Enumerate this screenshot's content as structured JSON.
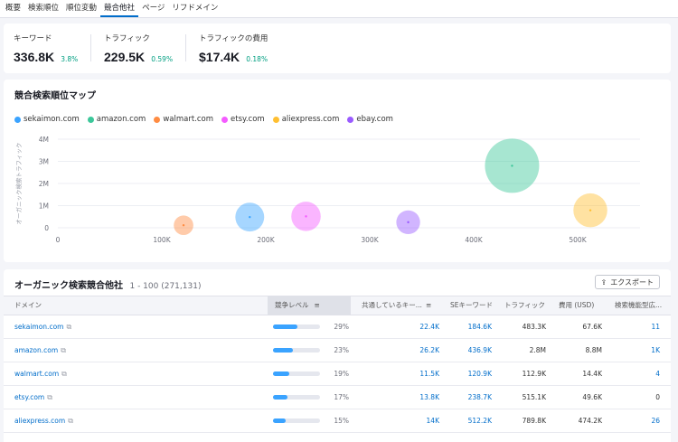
{
  "tabs": [
    "概要",
    "検索順位",
    "順位変動",
    "競合他社",
    "ページ",
    "リフドメイン"
  ],
  "active_tab": 3,
  "kpis": [
    {
      "label": "キーワード",
      "value": "336.8K",
      "delta": "3.8%"
    },
    {
      "label": "トラフィック",
      "value": "229.5K",
      "delta": "0.59%"
    },
    {
      "label": "トラフィックの費用",
      "value": "$17.4K",
      "delta": "0.18%"
    }
  ],
  "map": {
    "title": "競合検索順位マップ",
    "legend": [
      {
        "name": "sekaimon.com",
        "color": "#3aa3ff"
      },
      {
        "name": "amazon.com",
        "color": "#3cc79a"
      },
      {
        "name": "walmart.com",
        "color": "#ff8c42"
      },
      {
        "name": "etsy.com",
        "color": "#f45cff"
      },
      {
        "name": "aliexpress.com",
        "color": "#ffbf31"
      },
      {
        "name": "ebay.com",
        "color": "#9a5bff"
      }
    ]
  },
  "chart_data": {
    "type": "scatter",
    "title": "競合検索順位マップ",
    "xlabel": "",
    "ylabel": "オーガニック検索トラフィック",
    "x_ticks": [
      "0",
      "100K",
      "200K",
      "300K",
      "400K",
      "500K"
    ],
    "y_ticks": [
      "0",
      "1M",
      "2M",
      "3M",
      "4M"
    ],
    "xlim": [
      0,
      560000
    ],
    "ylim": [
      0,
      4000000
    ],
    "grid": true,
    "legend_position": "top-left",
    "points": [
      {
        "name": "walmart.com",
        "x": 120900,
        "y": 112900,
        "color": "#ff8c42"
      },
      {
        "name": "sekaimon.com",
        "x": 184600,
        "y": 483300,
        "color": "#3aa3ff"
      },
      {
        "name": "etsy.com",
        "x": 238700,
        "y": 515100,
        "color": "#f45cff"
      },
      {
        "name": "ebay.com",
        "x": 337000,
        "y": 250000,
        "color": "#9a5bff"
      },
      {
        "name": "amazon.com",
        "x": 436900,
        "y": 2800000,
        "color": "#3cc79a"
      },
      {
        "name": "aliexpress.com",
        "x": 512200,
        "y": 789800,
        "color": "#ffbf31"
      }
    ]
  },
  "table": {
    "title": "オーガニック検索競合他社",
    "range": "1 - 100 (271,131)",
    "export_label": "エクスポート",
    "columns": [
      "ドメイン",
      "競争レベル",
      "共通しているキー...",
      "SEキーワード",
      "トラフィック",
      "費用 (USD)",
      "検索機能型広..."
    ],
    "rows": [
      {
        "domain": "sekaimon.com",
        "level": 29,
        "level_text": "29%",
        "common": "22.4K",
        "se": "184.6K",
        "traffic": "483.3K",
        "cost": "67.6K",
        "ads": "11"
      },
      {
        "domain": "amazon.com",
        "level": 23,
        "level_text": "23%",
        "common": "26.2K",
        "se": "436.9K",
        "traffic": "2.8M",
        "cost": "8.8M",
        "ads": "1K"
      },
      {
        "domain": "walmart.com",
        "level": 19,
        "level_text": "19%",
        "common": "11.5K",
        "se": "120.9K",
        "traffic": "112.9K",
        "cost": "14.4K",
        "ads": "4"
      },
      {
        "domain": "etsy.com",
        "level": 17,
        "level_text": "17%",
        "common": "13.8K",
        "se": "238.7K",
        "traffic": "515.1K",
        "cost": "49.6K",
        "ads": "0"
      },
      {
        "domain": "aliexpress.com",
        "level": 15,
        "level_text": "15%",
        "common": "14K",
        "se": "512.2K",
        "traffic": "789.8K",
        "cost": "474.2K",
        "ads": "26"
      }
    ]
  }
}
